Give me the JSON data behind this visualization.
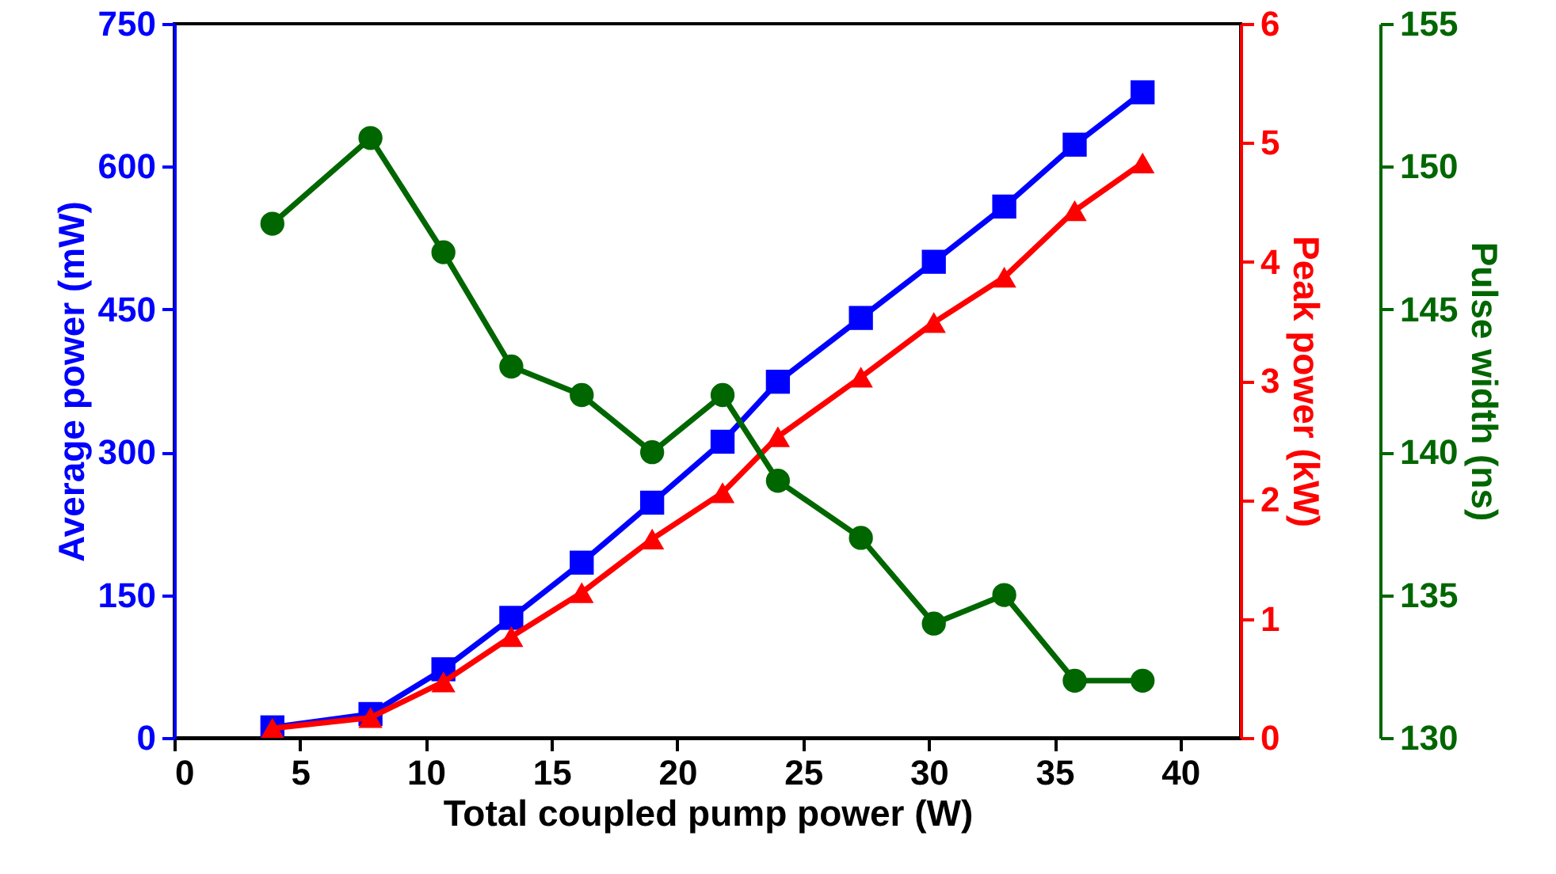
{
  "chart_data": {
    "type": "line",
    "xlabel": "Total coupled pump power (W)",
    "ylabel": "Average power (mW)",
    "y2label": "Peak power (kW)",
    "y3label": "Pulse width (ns)",
    "x": [
      3.9,
      7.8,
      10.7,
      13.4,
      16.2,
      19.0,
      21.8,
      24.0,
      27.3,
      30.2,
      33.0,
      35.8,
      38.5
    ],
    "xlim": [
      0,
      42.4
    ],
    "xticks": [
      0,
      5,
      10,
      15,
      20,
      25,
      30,
      35,
      40
    ],
    "ylim": [
      0,
      750
    ],
    "yticks": [
      0,
      150,
      300,
      450,
      600,
      750
    ],
    "y2lim": [
      0,
      6
    ],
    "y2ticks": [
      0,
      1,
      2,
      3,
      4,
      5,
      6
    ],
    "y3lim": [
      130,
      155
    ],
    "y3ticks": [
      130,
      135,
      140,
      145,
      150,
      155
    ],
    "grid": false,
    "series": [
      {
        "color": "#0000ff",
        "marker": "square",
        "values": [
          11,
          25,
          72,
          126,
          184,
          247,
          311,
          374,
          441,
          500,
          558,
          623,
          678
        ]
      },
      {
        "color": "#ff0000",
        "marker": "triangle",
        "axis": "y2",
        "values": [
          0.08,
          0.17,
          0.47,
          0.85,
          1.22,
          1.67,
          2.06,
          2.53,
          3.03,
          3.49,
          3.87,
          4.43,
          4.83
        ]
      },
      {
        "color": "#006600",
        "marker": "circle",
        "axis": "y3",
        "values": [
          148,
          151,
          147,
          143,
          142,
          140,
          142,
          139,
          137,
          134,
          135,
          132,
          132
        ]
      }
    ]
  }
}
